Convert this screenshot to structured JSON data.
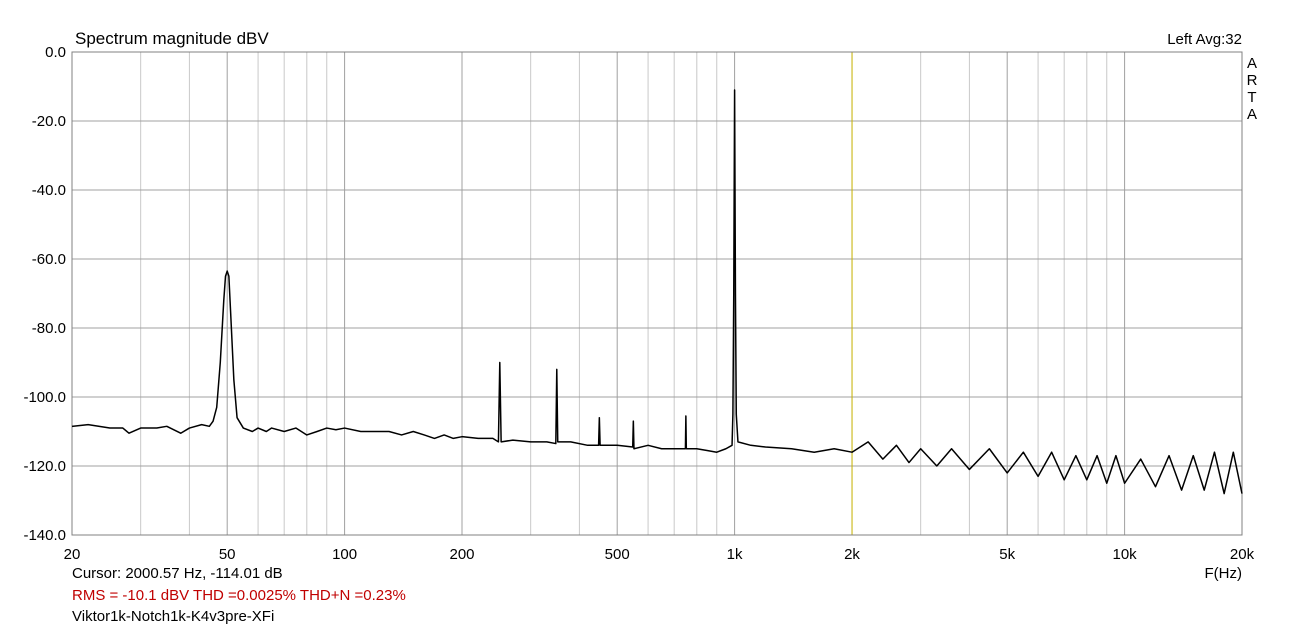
{
  "chart_data": {
    "type": "line",
    "title": "Spectrum magnitude dBV",
    "channel_info": "Left  Avg:32",
    "brand": "ARTA",
    "x_label": "F(Hz)",
    "cursor": {
      "text": "Cursor: 2000.57 Hz, -114.01 dB",
      "freq": 2000.57,
      "color": "#c8b400"
    },
    "summary": "RMS =  -10.1 dBV   THD =0.0025%   THD+N =0.23%",
    "summary_color": "#c00000",
    "file_name": "Viktor1k-Notch1k-K4v3pre-XFi",
    "x_scale": "log",
    "grid": true,
    "xlim": [
      20,
      20000
    ],
    "ylim": [
      -140,
      0
    ],
    "xticks": [
      20,
      50,
      100,
      200,
      500,
      {
        "value": 1000,
        "label": "1k"
      },
      {
        "value": 2000,
        "label": "2k"
      },
      {
        "value": 5000,
        "label": "5k"
      },
      {
        "value": 10000,
        "label": "10k"
      },
      {
        "value": 20000,
        "label": "20k"
      }
    ],
    "x_minor_gridlines": [
      30,
      40,
      60,
      70,
      80,
      90,
      300,
      400,
      600,
      700,
      800,
      900,
      3000,
      4000,
      6000,
      7000,
      8000,
      9000
    ],
    "yticks": [
      {
        "value": 0,
        "label": "0.0"
      },
      {
        "value": -20,
        "label": "-20.0"
      },
      {
        "value": -40,
        "label": "-40.0"
      },
      {
        "value": -60,
        "label": "-60.0"
      },
      {
        "value": -80,
        "label": "-80.0"
      },
      {
        "value": -100,
        "label": "-100.0"
      },
      {
        "value": -120,
        "label": "-120.0"
      },
      {
        "value": -140,
        "label": "-140.0"
      }
    ],
    "series": [
      {
        "name": "Spectrum",
        "color": "#000000",
        "x": [
          20,
          22,
          25,
          27,
          28,
          30,
          33,
          35,
          38,
          40,
          43,
          45,
          46,
          47,
          48,
          49,
          49.5,
          50,
          50.5,
          51,
          52,
          53,
          55,
          58,
          60,
          63,
          65,
          70,
          75,
          80,
          85,
          90,
          95,
          100,
          110,
          120,
          130,
          140,
          150,
          160,
          170,
          180,
          190,
          200,
          220,
          240,
          248,
          250,
          252,
          270,
          300,
          330,
          348,
          350,
          352,
          380,
          420,
          448,
          450,
          452,
          500,
          548,
          550,
          552,
          600,
          650,
          700,
          748,
          750,
          752,
          800,
          850,
          900,
          950,
          985,
          990,
          995,
          1000,
          1005,
          1010,
          1020,
          1100,
          1200,
          1400,
          1600,
          1800,
          2000,
          2200,
          2400,
          2600,
          2800,
          3000,
          3300,
          3600,
          4000,
          4500,
          5000,
          5500,
          6000,
          6500,
          7000,
          7500,
          8000,
          8500,
          9000,
          9500,
          10000,
          11000,
          12000,
          13000,
          14000,
          15000,
          16000,
          17000,
          18000,
          19000,
          20000
        ],
        "values": [
          -108.5,
          -108,
          -109,
          -109,
          -110.5,
          -109,
          -109,
          -108.5,
          -110.5,
          -109,
          -108,
          -108.5,
          -107,
          -103,
          -90,
          -72,
          -65,
          -63.5,
          -65,
          -75,
          -95,
          -106,
          -109,
          -110,
          -109,
          -110,
          -109,
          -110,
          -109,
          -111,
          -110,
          -109,
          -109.5,
          -109,
          -110,
          -110,
          -110,
          -111,
          -110,
          -111,
          -112,
          -111,
          -112,
          -111.5,
          -112,
          -112,
          -113,
          -90,
          -113,
          -112.5,
          -113,
          -113,
          -113.5,
          -92,
          -113,
          -113,
          -114,
          -114,
          -106,
          -114,
          -114,
          -114.5,
          -107,
          -115,
          -114,
          -115,
          -115,
          -115,
          -105.5,
          -115,
          -115,
          -115.5,
          -116,
          -115,
          -114,
          -105,
          -70,
          -11,
          -70,
          -105,
          -113,
          -114,
          -114.5,
          -115,
          -116,
          -115,
          -116,
          -113,
          -118,
          -114,
          -119,
          -115,
          -120,
          -115,
          -121,
          -115,
          -122,
          -116,
          -123,
          -116,
          -124,
          -117,
          -124,
          -117,
          -125,
          -117,
          -125,
          -118,
          -126,
          -117,
          -127,
          -117,
          -127,
          -116,
          -128,
          -116,
          -128
        ]
      }
    ]
  }
}
